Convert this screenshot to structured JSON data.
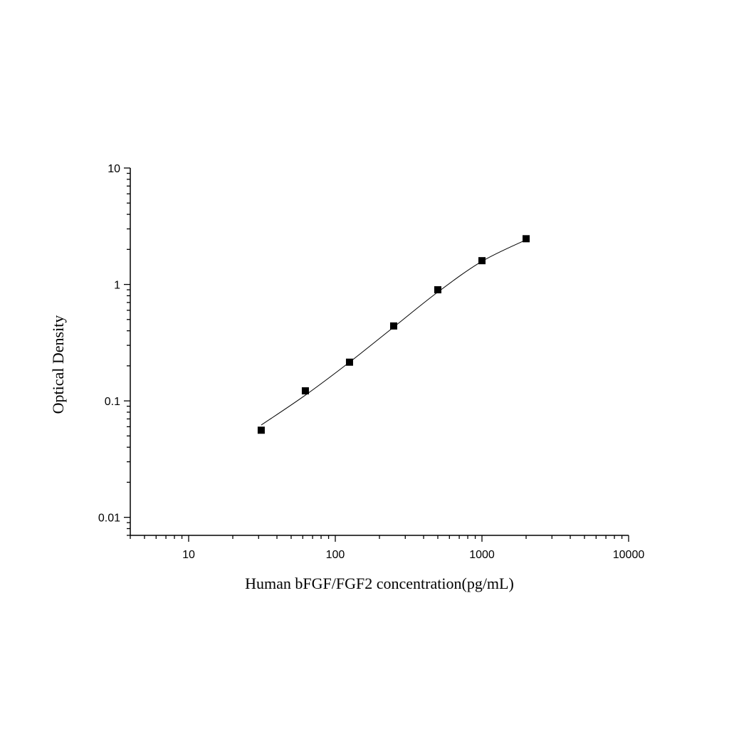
{
  "chart_data": {
    "type": "scatter",
    "title": "",
    "xlabel": "Human bFGF/FGF2 concentration(pg/mL)",
    "ylabel": "Optical Density",
    "x_scale": "log",
    "y_scale": "log",
    "xlim": [
      4,
      10000
    ],
    "ylim": [
      0.007,
      10
    ],
    "x_ticks": [
      {
        "value": 10,
        "label": "10"
      },
      {
        "value": 100,
        "label": "100"
      },
      {
        "value": 1000,
        "label": "1000"
      },
      {
        "value": 10000,
        "label": "10000"
      }
    ],
    "y_ticks": [
      {
        "value": 0.01,
        "label": "0.01"
      },
      {
        "value": 0.1,
        "label": "0.1"
      },
      {
        "value": 1,
        "label": "1"
      },
      {
        "value": 10,
        "label": "10"
      }
    ],
    "grid": false,
    "series": [
      {
        "marker": "square",
        "color": "#000000",
        "x": [
          31.25,
          62.5,
          125,
          250,
          500,
          1000,
          2000
        ],
        "y": [
          0.056,
          0.122,
          0.215,
          0.44,
          0.9,
          1.6,
          2.47
        ]
      }
    ],
    "fit_curve": {
      "color": "#000000",
      "x": [
        31.25,
        62.5,
        125,
        250,
        500,
        1000,
        2000
      ],
      "y": [
        0.062,
        0.112,
        0.215,
        0.43,
        0.86,
        1.58,
        2.42
      ]
    }
  }
}
